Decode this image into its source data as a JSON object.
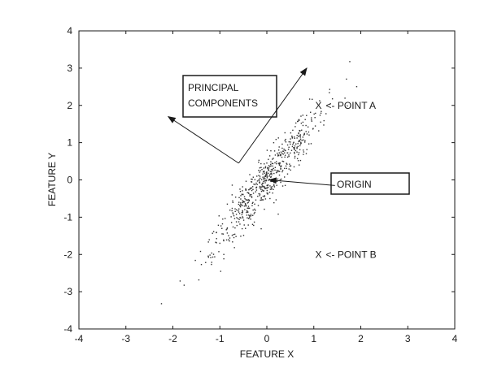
{
  "chart_data": {
    "type": "scatter",
    "xlabel": "FEATURE X",
    "ylabel": "FEATURE Y",
    "xlim": [
      -4,
      4
    ],
    "ylim": [
      -4,
      4
    ],
    "xticks": [
      "-4",
      "-3",
      "-2",
      "-1",
      "0",
      "1",
      "2",
      "3",
      "4"
    ],
    "yticks": [
      "-4",
      "-3",
      "-2",
      "-1",
      "0",
      "1",
      "2",
      "3",
      "4"
    ],
    "grid": false,
    "point_count": 600,
    "point_color": "#333333",
    "annotations": {
      "principal_components": {
        "text_line1": "PRINCIPAL",
        "text_line2": "COMPONENTS",
        "arrow_from": [
          -0.6,
          0.45
        ],
        "arrow_to_major": [
          0.85,
          3.0
        ],
        "arrow_to_minor": [
          -2.1,
          1.7
        ]
      },
      "origin": {
        "text": "ORIGIN",
        "arrow_from": [
          1.45,
          -0.15
        ],
        "arrow_to": [
          0.05,
          0.0
        ]
      },
      "point_a": {
        "marker": "X",
        "text": "<- POINT A",
        "x": 1.1,
        "y": 2.0
      },
      "point_b": {
        "marker": "X",
        "text": "<- POINT B",
        "x": 1.1,
        "y": -2.0
      }
    }
  }
}
